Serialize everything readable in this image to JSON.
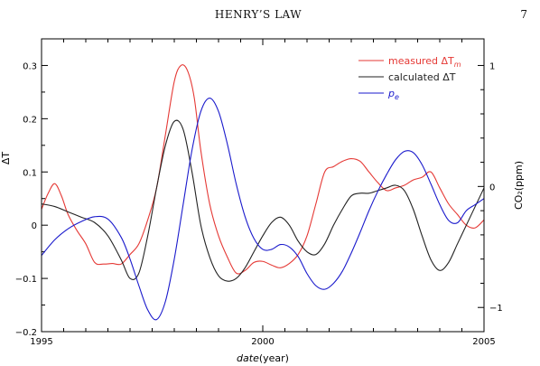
{
  "header": {
    "running_title": "HENRY’S LAW",
    "page_number": "7"
  },
  "chart_data": {
    "type": "line",
    "x_label_italic": "date",
    "x_label_rest": "(year)",
    "y_left_label": "ΔT",
    "y_right_label": "CO₂(ppm)",
    "xlim": [
      1995,
      2005
    ],
    "ylim_left": [
      -0.2,
      0.35
    ],
    "ylim_right": [
      -1.2,
      1.22
    ],
    "x_ticks": [
      {
        "v": 1995,
        "label": "1995"
      },
      {
        "v": 2000,
        "label": "2000"
      },
      {
        "v": 2005,
        "label": "2005"
      }
    ],
    "y_left_ticks": [
      {
        "v": -0.2,
        "label": "−0.2"
      },
      {
        "v": -0.1,
        "label": "−0.1"
      },
      {
        "v": 0,
        "label": "0"
      },
      {
        "v": 0.1,
        "label": "0.1"
      },
      {
        "v": 0.2,
        "label": "0.2"
      },
      {
        "v": 0.3,
        "label": "0.3"
      }
    ],
    "y_right_ticks": [
      {
        "v": -1,
        "label": "−1"
      },
      {
        "v": 0,
        "label": "0"
      },
      {
        "v": 1,
        "label": "1"
      }
    ],
    "series": [
      {
        "name": "measured ΔT_m",
        "legend_main": "measured ΔT",
        "legend_sub": "m",
        "color": "#e53935",
        "axis": "left",
        "x": [
          1995.0,
          1995.15,
          1995.3,
          1995.45,
          1995.6,
          1995.8,
          1996.0,
          1996.2,
          1996.4,
          1996.6,
          1996.8,
          1997.0,
          1997.2,
          1997.4,
          1997.6,
          1997.8,
          1998.0,
          1998.15,
          1998.3,
          1998.45,
          1998.6,
          1998.8,
          1999.0,
          1999.2,
          1999.4,
          1999.6,
          1999.8,
          2000.0,
          2000.2,
          2000.4,
          2000.6,
          2000.8,
          2001.0,
          2001.2,
          2001.4,
          2001.6,
          2001.8,
          2002.0,
          2002.2,
          2002.4,
          2002.6,
          2002.8,
          2003.0,
          2003.2,
          2003.4,
          2003.6,
          2003.8,
          2004.0,
          2004.2,
          2004.4,
          2004.6,
          2004.8,
          2005.0
        ],
        "y": [
          0.03,
          0.06,
          0.078,
          0.055,
          0.02,
          -0.01,
          -0.035,
          -0.07,
          -0.073,
          -0.072,
          -0.073,
          -0.055,
          -0.035,
          0.01,
          0.07,
          0.17,
          0.27,
          0.3,
          0.29,
          0.24,
          0.14,
          0.04,
          -0.02,
          -0.06,
          -0.09,
          -0.085,
          -0.07,
          -0.068,
          -0.075,
          -0.08,
          -0.072,
          -0.055,
          -0.02,
          0.04,
          0.1,
          0.11,
          0.12,
          0.125,
          0.12,
          0.1,
          0.08,
          0.065,
          0.07,
          0.075,
          0.085,
          0.09,
          0.1,
          0.07,
          0.04,
          0.02,
          0.0,
          -0.005,
          0.01
        ]
      },
      {
        "name": "calculated ΔT",
        "legend_main": "calculated ΔT",
        "legend_sub": "",
        "color": "#222222",
        "axis": "left",
        "x": [
          1995.0,
          1995.3,
          1995.6,
          1995.9,
          1996.2,
          1996.5,
          1996.8,
          1997.0,
          1997.2,
          1997.4,
          1997.6,
          1997.8,
          1998.0,
          1998.2,
          1998.4,
          1998.6,
          1998.8,
          1999.0,
          1999.2,
          1999.4,
          1999.6,
          1999.8,
          2000.0,
          2000.2,
          2000.4,
          2000.6,
          2000.8,
          2001.0,
          2001.2,
          2001.4,
          2001.6,
          2001.8,
          2002.0,
          2002.2,
          2002.4,
          2002.6,
          2002.8,
          2003.0,
          2003.2,
          2003.4,
          2003.6,
          2003.8,
          2004.0,
          2004.2,
          2004.4,
          2004.6,
          2004.8,
          2005.0
        ],
        "y": [
          0.04,
          0.035,
          0.025,
          0.015,
          0.005,
          -0.02,
          -0.065,
          -0.1,
          -0.09,
          -0.02,
          0.07,
          0.15,
          0.195,
          0.18,
          0.1,
          0.0,
          -0.06,
          -0.095,
          -0.105,
          -0.1,
          -0.08,
          -0.05,
          -0.02,
          0.005,
          0.015,
          0.0,
          -0.03,
          -0.05,
          -0.055,
          -0.035,
          0.0,
          0.03,
          0.055,
          0.06,
          0.06,
          0.065,
          0.07,
          0.075,
          0.065,
          0.03,
          -0.02,
          -0.065,
          -0.085,
          -0.07,
          -0.035,
          0.0,
          0.035,
          0.07
        ]
      },
      {
        "name": "p_e",
        "legend_main": "p",
        "legend_sub": "e",
        "color": "#1a1acc",
        "axis": "right",
        "x": [
          1995.0,
          1995.3,
          1995.6,
          1995.9,
          1996.2,
          1996.5,
          1996.8,
          1997.0,
          1997.2,
          1997.4,
          1997.6,
          1997.8,
          1998.0,
          1998.2,
          1998.4,
          1998.6,
          1998.8,
          1999.0,
          1999.2,
          1999.4,
          1999.6,
          1999.8,
          2000.0,
          2000.2,
          2000.4,
          2000.6,
          2000.8,
          2001.0,
          2001.2,
          2001.4,
          2001.6,
          2001.8,
          2002.0,
          2002.2,
          2002.4,
          2002.6,
          2002.8,
          2003.0,
          2003.2,
          2003.4,
          2003.6,
          2003.8,
          2004.0,
          2004.2,
          2004.4,
          2004.6,
          2004.8,
          2005.0
        ],
        "y": [
          -0.57,
          -0.44,
          -0.35,
          -0.29,
          -0.25,
          -0.27,
          -0.42,
          -0.6,
          -0.82,
          -1.02,
          -1.1,
          -0.95,
          -0.6,
          -0.15,
          0.3,
          0.62,
          0.73,
          0.62,
          0.35,
          0.02,
          -0.25,
          -0.43,
          -0.52,
          -0.52,
          -0.48,
          -0.5,
          -0.58,
          -0.72,
          -0.82,
          -0.85,
          -0.8,
          -0.7,
          -0.55,
          -0.38,
          -0.2,
          -0.04,
          0.1,
          0.22,
          0.29,
          0.28,
          0.18,
          0.02,
          -0.15,
          -0.28,
          -0.3,
          -0.2,
          -0.15,
          -0.1
        ]
      }
    ]
  }
}
